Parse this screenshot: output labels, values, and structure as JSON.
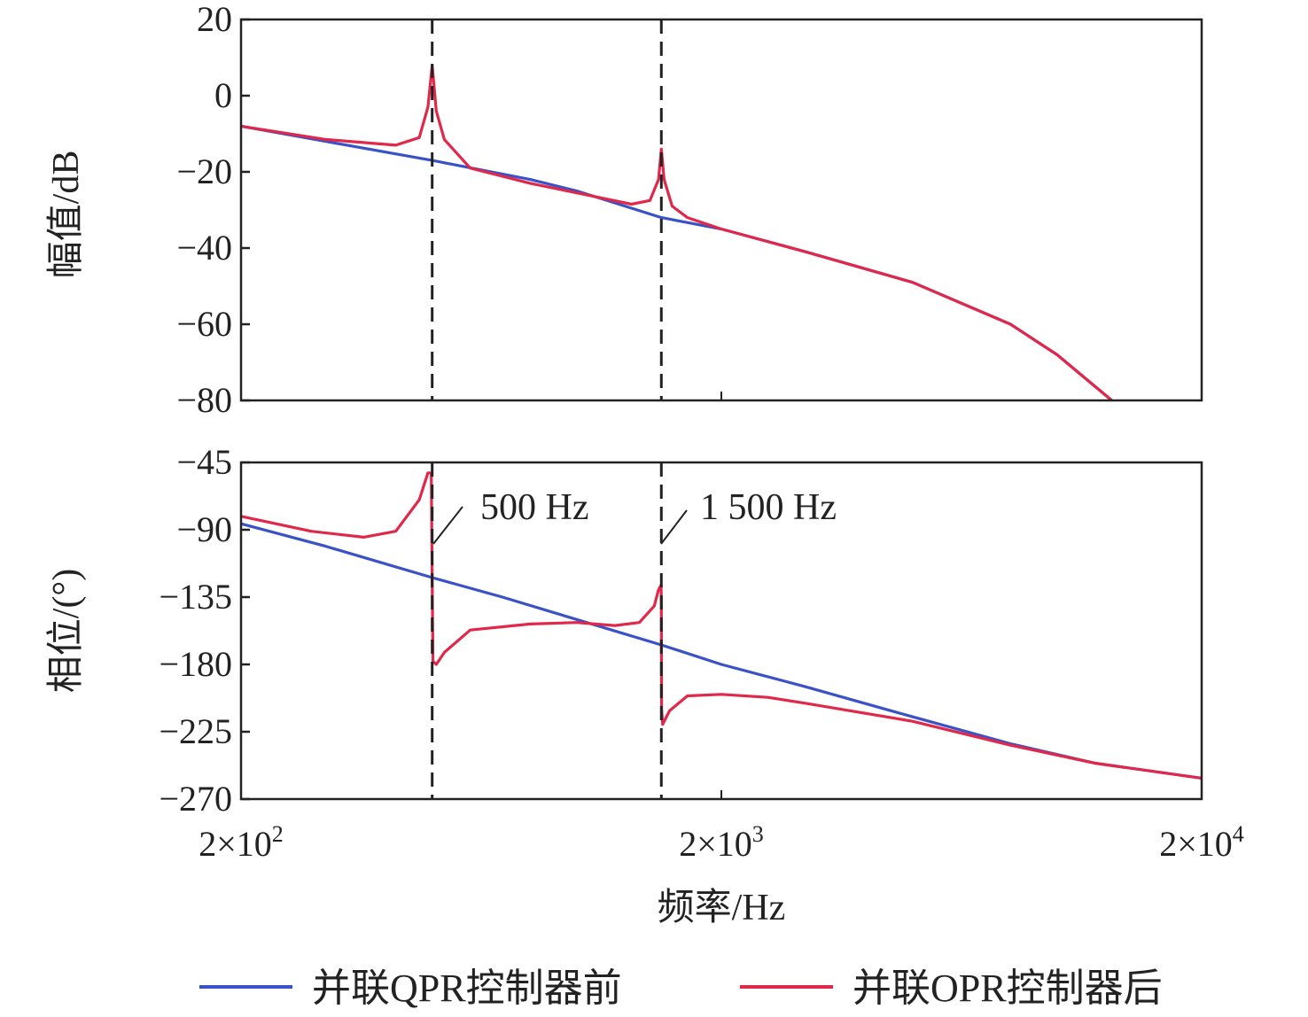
{
  "chart_data": [
    {
      "id": "magnitude",
      "type": "line",
      "ylabel": "幅值/dB",
      "xscale": "log",
      "xlim": [
        200,
        20000
      ],
      "ylim": [
        -80,
        20
      ],
      "yticks": [
        "20",
        "0",
        "−20",
        "−40",
        "−60",
        "−80"
      ],
      "ytick_values": [
        20,
        0,
        -20,
        -40,
        -60,
        -80
      ],
      "vlines": [
        500,
        1500
      ],
      "series": [
        {
          "name": "并联QPR控制器前",
          "color": "#3a52c8",
          "x": [
            200,
            300,
            500,
            800,
            1000,
            1500,
            2000,
            3000,
            5000,
            8000,
            10000,
            13000
          ],
          "y": [
            -8,
            -12,
            -17,
            -22,
            -25,
            -32,
            -35,
            -41,
            -49,
            -60,
            -68,
            -80
          ]
        },
        {
          "name": "并联OPR控制器后",
          "color": "#e0284a",
          "x": [
            200,
            300,
            420,
            470,
            490,
            500,
            510,
            530,
            600,
            800,
            1000,
            1300,
            1420,
            1480,
            1500,
            1520,
            1580,
            1700,
            2000,
            3000,
            5000,
            8000,
            10000,
            13000
          ],
          "y": [
            -8,
            -11.5,
            -13,
            -11,
            -3,
            8,
            -4,
            -11.5,
            -19,
            -23,
            -25.5,
            -28.5,
            -27.5,
            -22,
            -14,
            -22,
            -29,
            -32,
            -35,
            -41,
            -49,
            -60,
            -68,
            -80
          ]
        }
      ]
    },
    {
      "id": "phase",
      "type": "line",
      "ylabel": "相位/(°)",
      "xlabel": "频率/Hz",
      "xscale": "log",
      "xlim": [
        200,
        20000
      ],
      "ylim": [
        -270,
        -45
      ],
      "yticks": [
        "−45",
        "−90",
        "−135",
        "−180",
        "−225",
        "−270"
      ],
      "ytick_values": [
        -45,
        -90,
        -135,
        -180,
        -225,
        -270
      ],
      "xticks": [
        "2×10",
        "2×10",
        "2×10"
      ],
      "xtick_exponents": [
        "2",
        "3",
        "4"
      ],
      "xtick_values": [
        200,
        2000,
        20000
      ],
      "vlines": [
        500,
        1500
      ],
      "annotations": [
        "500 Hz",
        "1 500 Hz"
      ],
      "series": [
        {
          "name": "并联QPR控制器前",
          "color": "#3a52c8",
          "x": [
            200,
            300,
            500,
            700,
            1000,
            1500,
            2000,
            3000,
            5000,
            8000,
            12000,
            20000
          ],
          "y": [
            -86,
            -101,
            -122,
            -135,
            -150,
            -167,
            -180,
            -195,
            -215,
            -233,
            -246,
            -256
          ]
        },
        {
          "name": "并联OPR控制器后",
          "color": "#e0284a",
          "x": [
            200,
            280,
            360,
            420,
            470,
            490,
            498,
            500,
            502,
            510,
            530,
            600,
            800,
            1000,
            1200,
            1350,
            1450,
            1480,
            1498,
            1500,
            1502,
            1510,
            1560,
            1700,
            2000,
            2500,
            3000,
            5000,
            8000,
            12000,
            20000
          ],
          "y": [
            -81,
            -91,
            -95,
            -91,
            -70,
            -52,
            -52,
            -125,
            -178,
            -180,
            -172,
            -157,
            -153,
            -152,
            -154,
            -152,
            -141,
            -130,
            -127,
            -140,
            -210,
            -220,
            -211,
            -201,
            -200,
            -202,
            -206,
            -218,
            -234,
            -246,
            -256
          ]
        }
      ]
    }
  ],
  "legend": {
    "placement": "bottom",
    "items": [
      {
        "label": "并联QPR控制器前",
        "color": "#3a52c8"
      },
      {
        "label": "并联OPR控制器后",
        "color": "#e0284a"
      }
    ]
  }
}
